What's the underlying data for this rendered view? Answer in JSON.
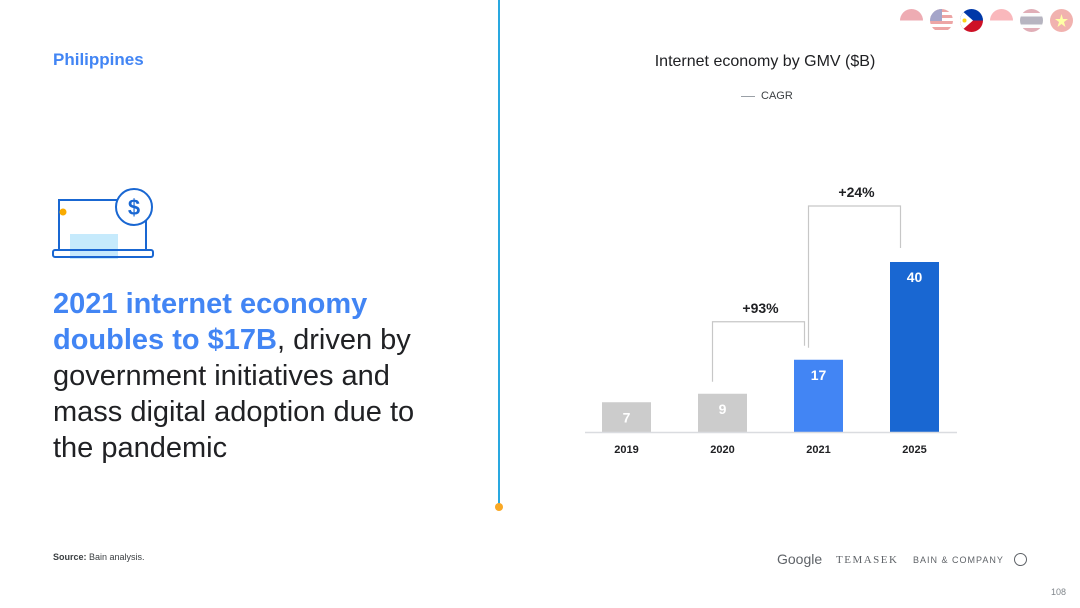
{
  "slide": {
    "country": "Philippines",
    "headline_highlight": "2021 internet economy doubles to $17B",
    "headline_rest": ", driven by government initiatives and mass digital adoption due to the pandemic",
    "source_label": "Source:",
    "source_text": " Bain analysis.",
    "page_number": "108"
  },
  "logos": {
    "google": "Google",
    "temasek": "TEMASEK",
    "bain": "BAIN & COMPANY"
  },
  "icons": {
    "laptop": "laptop-dollar-icon",
    "flags": [
      "indonesia-flag-icon",
      "malaysia-flag-icon",
      "philippines-flag-icon",
      "singapore-flag-icon",
      "thailand-flag-icon",
      "vietnam-flag-icon"
    ]
  },
  "colors": {
    "accent_blue": "#4285f4",
    "divider": "#29a8e0",
    "bar_past": "#cccccc",
    "bar_2021": "#4285f4",
    "bar_2025": "#1967d2",
    "connector": "#c7c7c7"
  },
  "chart_data": {
    "type": "bar",
    "title": "Internet economy by GMV ($B)",
    "legend": [
      {
        "label": "CAGR",
        "style": "line"
      }
    ],
    "categories": [
      "2019",
      "2020",
      "2021",
      "2025"
    ],
    "values": [
      7,
      9,
      17,
      40
    ],
    "bar_colors": [
      "#cccccc",
      "#cccccc",
      "#4285f4",
      "#1967d2"
    ],
    "annotations": [
      {
        "label": "+93%",
        "from": "2020",
        "to": "2021"
      },
      {
        "label": "+24%",
        "from": "2021",
        "to": "2025"
      }
    ],
    "ylim": [
      0,
      40
    ],
    "xlabel": "",
    "ylabel": "",
    "grid": false
  }
}
